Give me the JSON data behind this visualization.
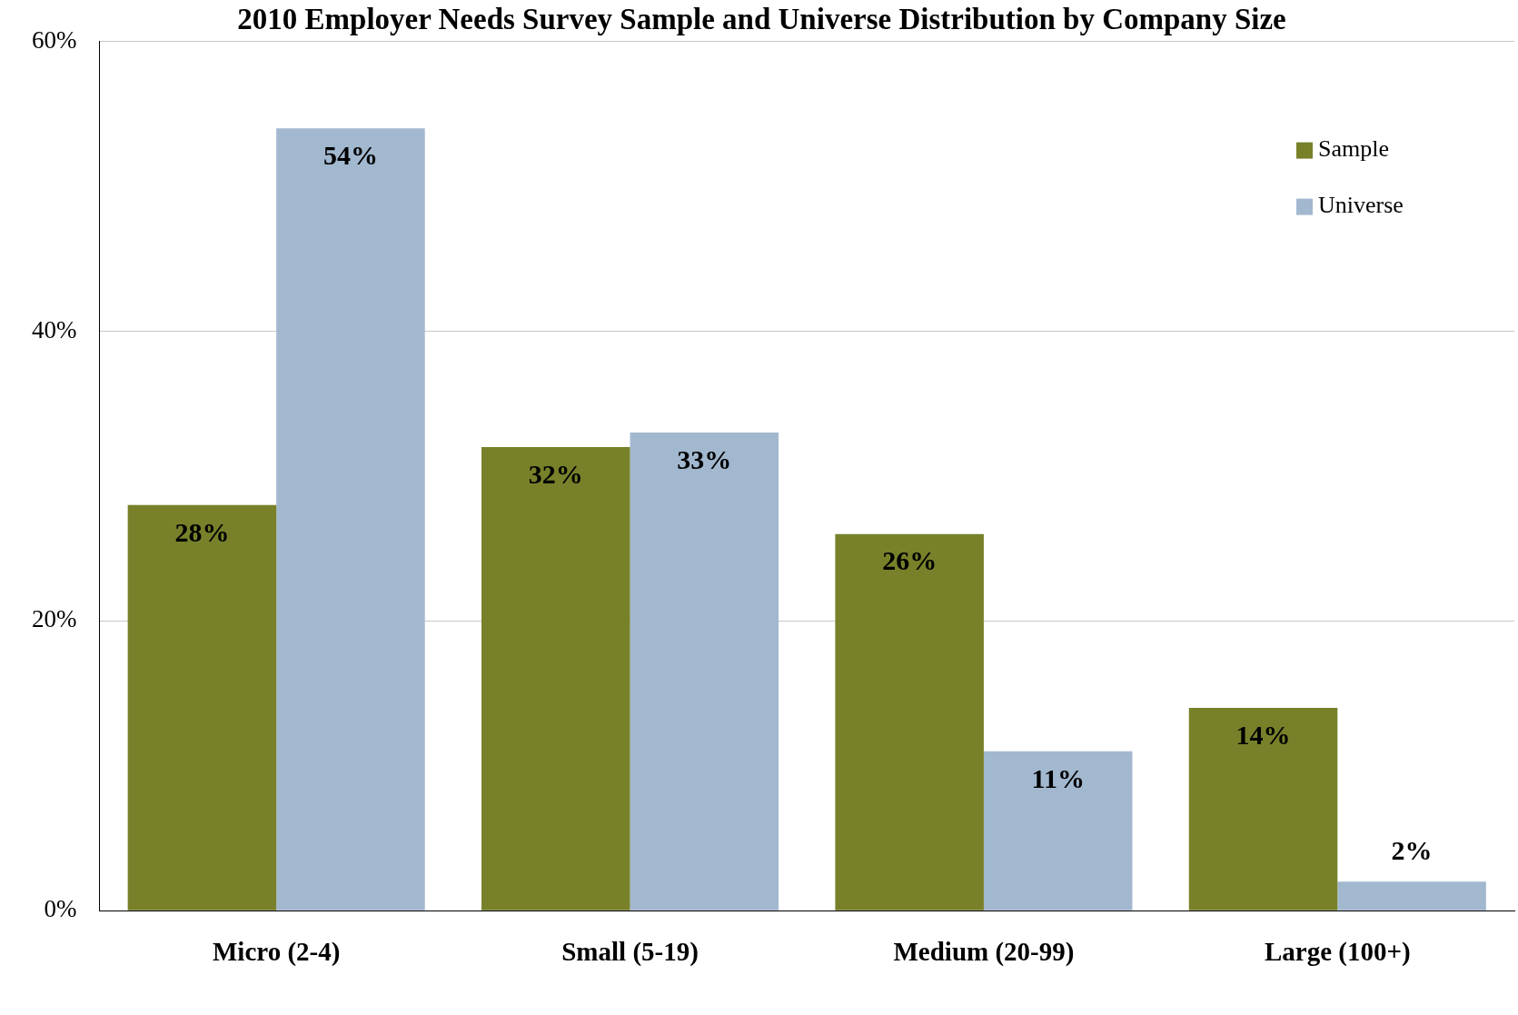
{
  "chart_data": {
    "type": "bar",
    "title": "2010 Employer Needs Survey Sample and Universe Distribution by Company Size",
    "categories": [
      "Micro (2-4)",
      "Small (5-19)",
      "Medium (20-99)",
      "Large (100+)"
    ],
    "series": [
      {
        "name": "Sample",
        "color": "#78812a",
        "values": [
          28,
          32,
          26,
          14
        ],
        "value_labels": [
          "28%",
          "32%",
          "26%",
          "14%"
        ]
      },
      {
        "name": "Universe",
        "color": "#a2b8cf",
        "values": [
          54,
          33,
          11,
          2
        ],
        "value_labels": [
          "54%",
          "33%",
          "11%",
          "2%"
        ]
      }
    ],
    "ylim": [
      0,
      60
    ],
    "yticks": [
      {
        "value": 0,
        "label": "0%"
      },
      {
        "value": 20,
        "label": "20%"
      },
      {
        "value": 40,
        "label": "40%"
      },
      {
        "value": 60,
        "label": "60%"
      }
    ],
    "grid": "y",
    "legend": "top right"
  }
}
